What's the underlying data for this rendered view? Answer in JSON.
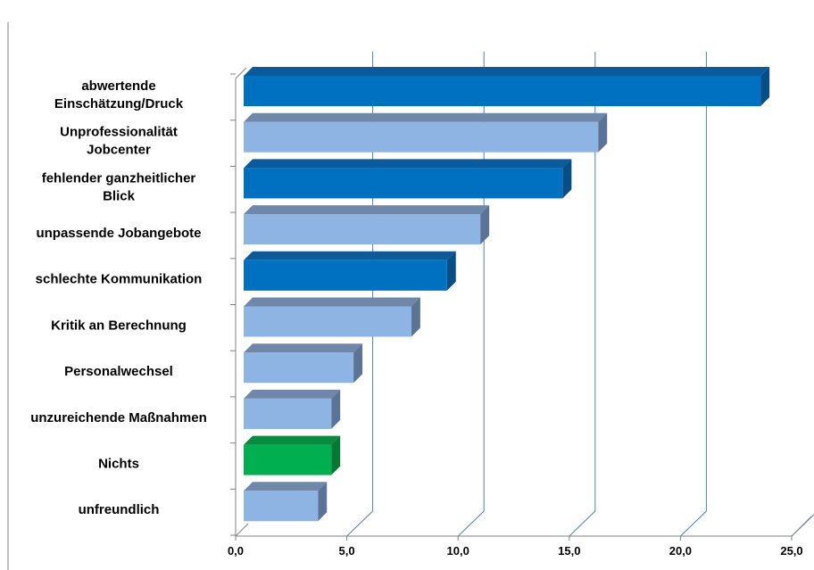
{
  "chart_data": {
    "type": "bar",
    "orientation": "horizontal",
    "style": "3d",
    "categories": [
      "abwertende Einschätzung/Druck",
      "Unprofessionalität Jobcenter",
      "fehlender ganzheitlicher Blick",
      "unpassende Jobangebote",
      "schlechte Kommunikation",
      "Kritik an Berechnung",
      "Personalwechsel",
      "unzureichende Maßnahmen",
      "Nichts",
      "unfreundlich"
    ],
    "category_lines": [
      [
        "abwertende",
        "Einschätzung/Druck"
      ],
      [
        "Unprofessionalität",
        "Jobcenter"
      ],
      [
        "fehlender ganzheitlicher",
        "Blick"
      ],
      [
        "unpassende Jobangebote"
      ],
      [
        "schlechte Kommunikation"
      ],
      [
        "Kritik an Berechnung"
      ],
      [
        "Personalwechsel"
      ],
      [
        "unzureichende Maßnahmen"
      ],
      [
        "Nichts"
      ],
      [
        "unfreundlich"
      ]
    ],
    "values": [
      23.6,
      16.3,
      14.7,
      11.0,
      9.5,
      7.9,
      5.3,
      4.3,
      4.3,
      3.7
    ],
    "bar_colors": [
      "dark",
      "light",
      "dark",
      "light",
      "dark",
      "light",
      "light",
      "light",
      "green",
      "light"
    ],
    "xlim": [
      0,
      25
    ],
    "xticks": [
      "0,0",
      "5,0",
      "10,0",
      "15,0",
      "20,0",
      "25,0"
    ],
    "xticks_values": [
      0,
      5,
      10,
      15,
      20,
      25
    ],
    "grid": true,
    "legend": "none",
    "title": "",
    "xlabel": "",
    "ylabel": ""
  },
  "colors": {
    "dark": {
      "front": "#0070c0",
      "top": "#0a5a9c",
      "side": "#074d86"
    },
    "light": {
      "front": "#8db4e2",
      "top": "#6f87a8",
      "side": "#5b7396"
    },
    "green": {
      "front": "#00b050",
      "top": "#0a8a3e",
      "side": "#077734"
    },
    "grid": "#4f81bd",
    "axis": "#808080"
  }
}
